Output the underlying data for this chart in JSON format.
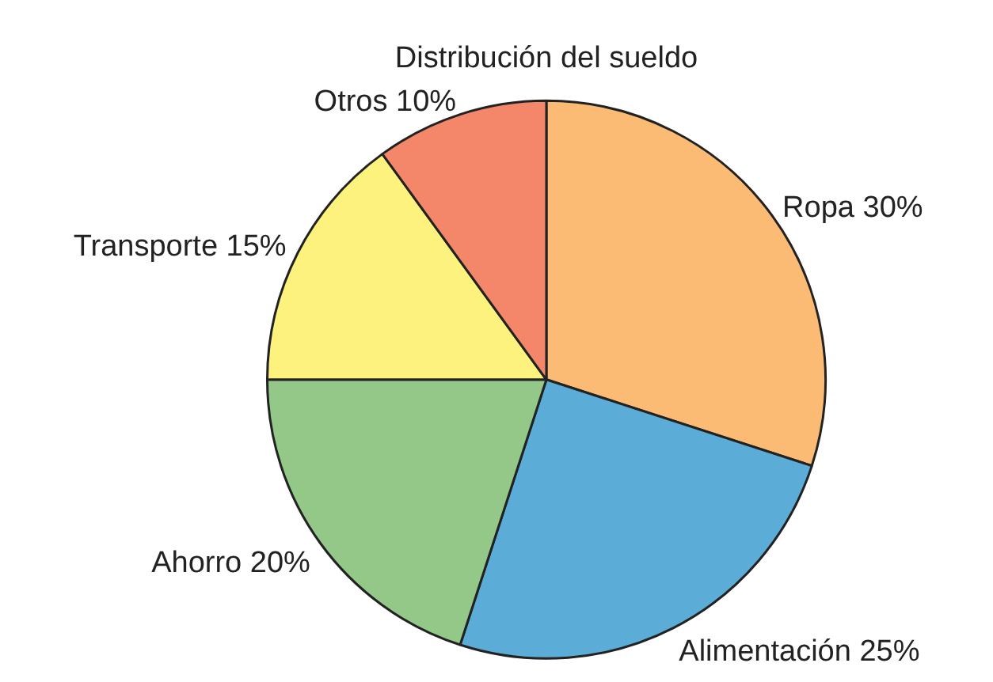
{
  "chart_data": {
    "type": "pie",
    "title": "Distribución del sueldo",
    "categories": [
      "Ropa",
      "Alimentación",
      "Ahorro",
      "Transporte",
      "Otros"
    ],
    "values": [
      30,
      25,
      20,
      15,
      10
    ],
    "value_labels": [
      "30%",
      "25%",
      "20%",
      "15%",
      "10%"
    ],
    "colors": [
      "#fbbb74",
      "#5badd8",
      "#93c889",
      "#fef27f",
      "#f4876a"
    ],
    "legend": false
  }
}
